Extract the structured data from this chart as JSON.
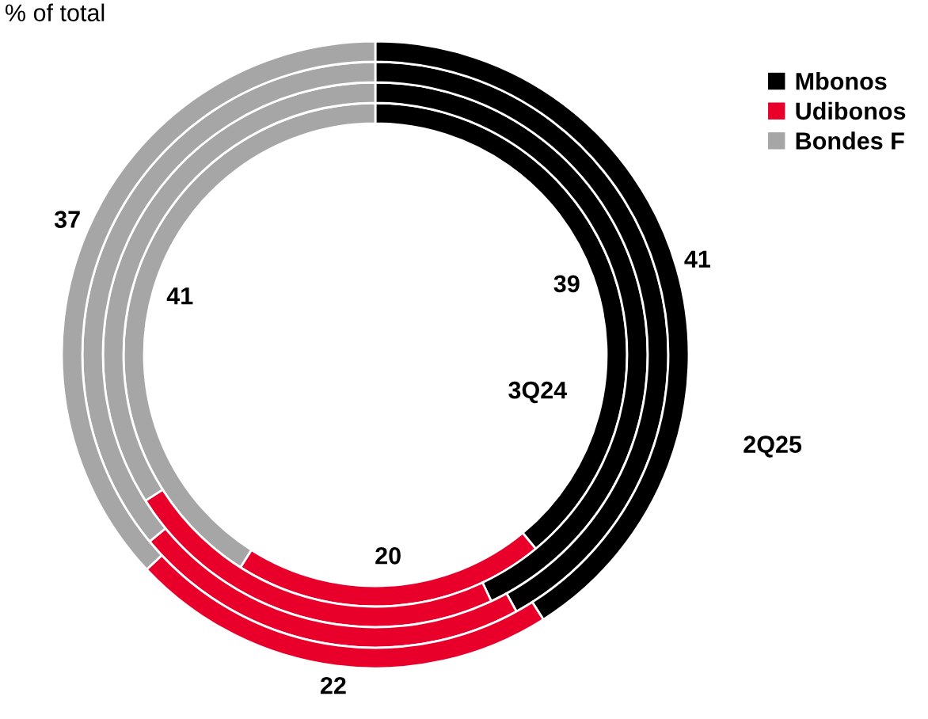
{
  "chart_data": {
    "type": "donut",
    "title": "% of total",
    "categories": [
      "Mbonos",
      "Udibonos",
      "Bondes F"
    ],
    "colors": [
      "#000000",
      "#e8002a",
      "#a6a6a6"
    ],
    "series": [
      {
        "name": "3Q24",
        "values": [
          39,
          20,
          41
        ],
        "value_labels": [
          "39",
          "20",
          "41"
        ]
      },
      {
        "values": [
          43,
          23,
          34
        ]
      },
      {
        "values": [
          42,
          22,
          36
        ]
      },
      {
        "name": "2Q25",
        "values": [
          41,
          22,
          37
        ],
        "value_labels": [
          "41",
          "22",
          "37"
        ]
      }
    ],
    "legend": "top right"
  }
}
